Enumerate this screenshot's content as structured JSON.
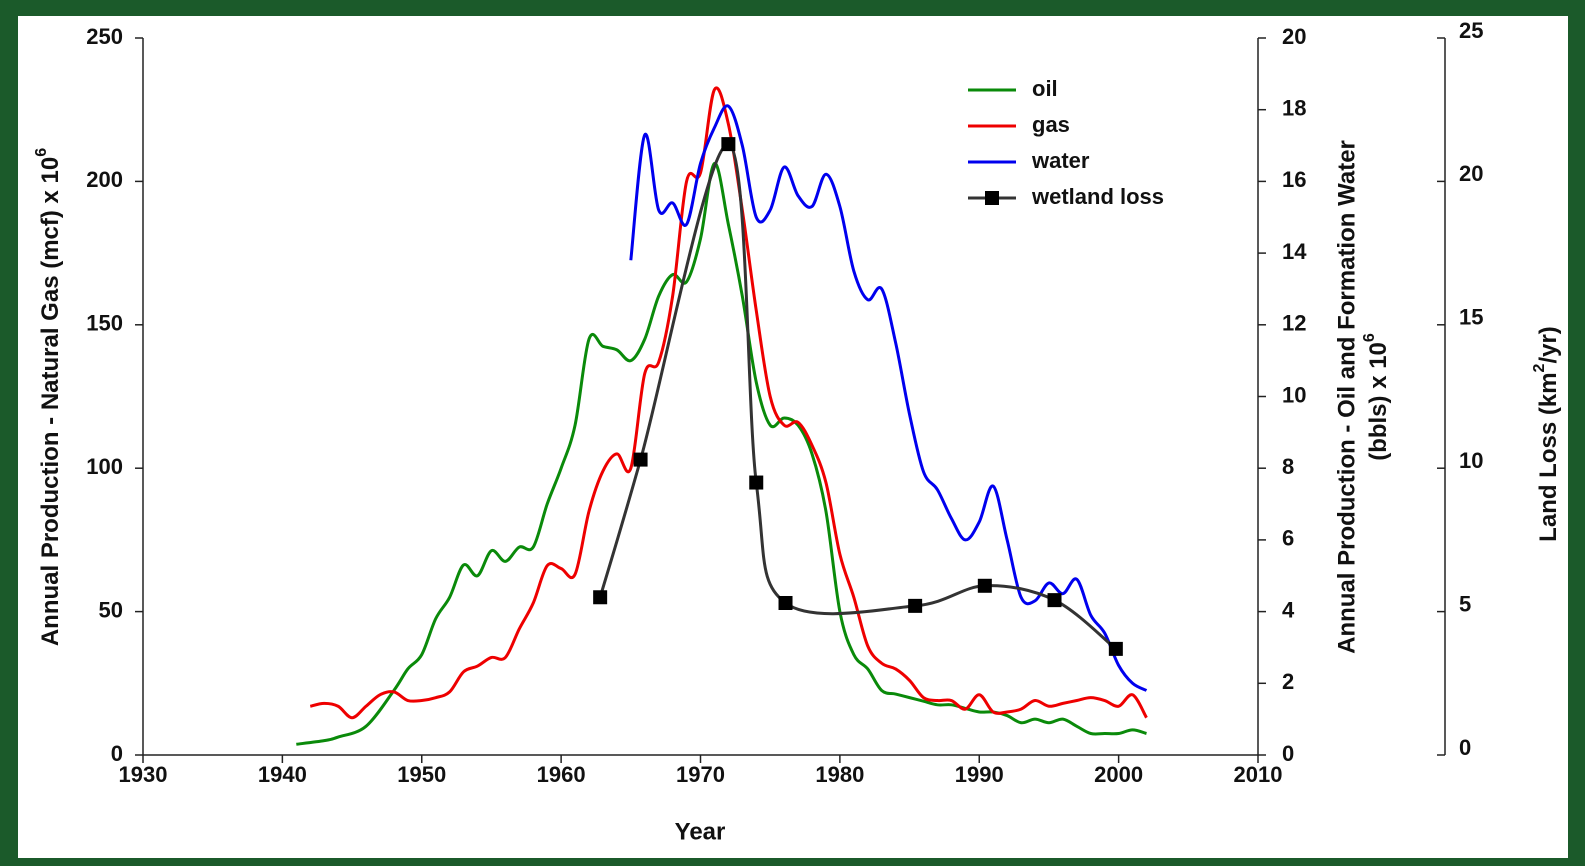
{
  "chart_data": {
    "type": "line",
    "xlabel": "Year",
    "ylabel": [
      "Annual Production - Natural Gas (mcf) x 10",
      "6"
    ],
    "y2label": [
      "Annual Production - Oil and Formation Water",
      "(bbls) x 10",
      "6"
    ],
    "y3label": [
      "Land Loss (km",
      "2",
      "/yr)"
    ],
    "xlim": [
      1930,
      2010
    ],
    "xticks": [
      1930,
      1940,
      1950,
      1960,
      1970,
      1980,
      1990,
      2000,
      2010
    ],
    "ylim": [
      0,
      250
    ],
    "yticks": [
      0,
      50,
      100,
      150,
      200,
      250
    ],
    "y2lim": [
      0,
      20
    ],
    "y2ticks": [
      0,
      2,
      4,
      6,
      8,
      10,
      12,
      14,
      16,
      18,
      20
    ],
    "y3lim": [
      0,
      25
    ],
    "y3ticks": [
      0,
      5,
      10,
      15,
      20,
      25
    ],
    "legend": "upper right",
    "series": [
      {
        "name": "oil",
        "color": "#0a8a0a",
        "axis": "y2",
        "x": [
          1941,
          1943,
          1944,
          1946,
          1948,
          1949,
          1950,
          1951,
          1952,
          1953,
          1954,
          1955,
          1956,
          1957,
          1958,
          1959,
          1960,
          1961,
          1962,
          1963,
          1964,
          1965,
          1966,
          1967,
          1968,
          1969,
          1970,
          1971,
          1972,
          1973,
          1974,
          1975,
          1976,
          1977,
          1978,
          1979,
          1980,
          1981,
          1982,
          1983,
          1984,
          1985,
          1986,
          1987,
          1988,
          1989,
          1990,
          1991,
          1992,
          1993,
          1994,
          1995,
          1996,
          1997,
          1998,
          1999,
          2000,
          2001,
          2002
        ],
        "values": [
          0.3,
          0.4,
          0.5,
          0.8,
          1.8,
          2.4,
          2.8,
          3.8,
          4.4,
          5.3,
          5.0,
          5.7,
          5.4,
          5.8,
          5.8,
          7.0,
          8.0,
          9.2,
          11.6,
          11.4,
          11.3,
          11.0,
          11.6,
          12.8,
          13.4,
          13.2,
          14.4,
          16.5,
          14.8,
          12.8,
          10.4,
          9.2,
          9.4,
          9.2,
          8.4,
          6.8,
          4.0,
          2.8,
          2.4,
          1.8,
          1.7,
          1.6,
          1.5,
          1.4,
          1.4,
          1.3,
          1.2,
          1.2,
          1.1,
          0.9,
          1.0,
          0.9,
          1.0,
          0.8,
          0.6,
          0.6,
          0.6,
          0.7,
          0.6
        ]
      },
      {
        "name": "gas",
        "color": "#ee0000",
        "axis": "y",
        "x": [
          1942,
          1943,
          1944,
          1945,
          1946,
          1947,
          1948,
          1949,
          1950,
          1951,
          1952,
          1953,
          1954,
          1955,
          1956,
          1957,
          1958,
          1959,
          1960,
          1961,
          1962,
          1963,
          1964,
          1965,
          1966,
          1967,
          1968,
          1969,
          1970,
          1971,
          1972,
          1973,
          1974,
          1975,
          1976,
          1977,
          1978,
          1979,
          1980,
          1981,
          1982,
          1983,
          1984,
          1985,
          1986,
          1987,
          1988,
          1989,
          1990,
          1991,
          1992,
          1993,
          1994,
          1995,
          1996,
          1997,
          1998,
          1999,
          2000,
          2001,
          2002
        ],
        "values": [
          17,
          18,
          17,
          13,
          17,
          21,
          22,
          19,
          19,
          20,
          22,
          29,
          31,
          34,
          34,
          44,
          53,
          66,
          65,
          63,
          85,
          99,
          105,
          100,
          133,
          137,
          160,
          200,
          203,
          232,
          220,
          190,
          155,
          125,
          115,
          116,
          108,
          95,
          70,
          55,
          38,
          32,
          30,
          26,
          20,
          19,
          19,
          16,
          21,
          15,
          15,
          16,
          19,
          17,
          18,
          19,
          20,
          19,
          17,
          21,
          13
        ]
      },
      {
        "name": "water",
        "color": "#0000ee",
        "axis": "y2",
        "x": [
          1965,
          1966,
          1967,
          1968,
          1969,
          1970,
          1971,
          1972,
          1973,
          1974,
          1975,
          1976,
          1977,
          1978,
          1979,
          1980,
          1981,
          1982,
          1983,
          1984,
          1985,
          1986,
          1987,
          1988,
          1989,
          1990,
          1991,
          1992,
          1993,
          1994,
          1995,
          1996,
          1997,
          1998,
          1999,
          2000,
          2001,
          2002
        ],
        "values": [
          13.8,
          17.3,
          15.2,
          15.4,
          14.8,
          16.5,
          17.5,
          18.1,
          17.0,
          15.0,
          15.2,
          16.4,
          15.6,
          15.3,
          16.2,
          15.3,
          13.5,
          12.7,
          13.0,
          11.5,
          9.5,
          7.9,
          7.4,
          6.6,
          6.0,
          6.5,
          7.5,
          6.0,
          4.4,
          4.3,
          4.8,
          4.5,
          4.9,
          3.9,
          3.4,
          2.5,
          2.0,
          1.8
        ]
      },
      {
        "name": "wetland loss",
        "color": "#333333",
        "axis": "y3",
        "marker": "square",
        "x": [
          1962.8,
          1965.7,
          1972.0,
          1974.0,
          1976.1,
          1985.4,
          1990.4,
          1995.4,
          1999.8
        ],
        "values": [
          5.5,
          10.3,
          21.3,
          9.5,
          5.3,
          5.2,
          5.9,
          5.4,
          3.7
        ]
      }
    ]
  }
}
